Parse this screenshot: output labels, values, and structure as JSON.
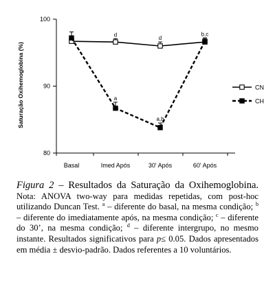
{
  "chart_data": {
    "type": "line",
    "categories": [
      "Basal",
      "Imed Após",
      "30' Após",
      "60' Após"
    ],
    "ylabel": "Saturação Oxihemoglobina (%)",
    "ylim": [
      80,
      100
    ],
    "yticks": [
      "80",
      "90",
      "100"
    ],
    "legend_position": "right",
    "grid": false,
    "series": [
      {
        "name": "CN",
        "marker": "open-square",
        "line": "solid",
        "values": [
          96.7,
          96.6,
          96.0,
          96.6
        ],
        "errors": [
          0.6,
          0.5,
          0.6,
          0.6
        ],
        "annotations": [
          "",
          "d",
          "d",
          "b,c"
        ]
      },
      {
        "name": "CH",
        "marker": "filled-square",
        "line": "dashed",
        "values": [
          97.2,
          86.7,
          83.8,
          96.7
        ],
        "errors": [
          0.9,
          0.9,
          0.7,
          0.5
        ],
        "annotations": [
          "",
          "a",
          "a,b",
          ""
        ]
      }
    ]
  },
  "caption": {
    "figure_label": "Figura 2",
    "dash": " – ",
    "title": "Resultados da Saturação da Oxihemoglobina.",
    "p1": " Nota: ANOVA two-way para medidas repetidas, com post-hoc utilizando Duncan Test. ",
    "sup_a": "a",
    "t_a": " – diferente do basal, na mesma condição; ",
    "sup_b": "b",
    "t_b": " – diferente do imediatamente após, na mesma condição; ",
    "sup_c": "c",
    "t_c": " – diferente do 30’, na mesma condição; ",
    "sup_d": "d",
    "t_d": " – diferente intergrupo, no mesmo instante. Resultados significativos para ",
    "p_symbol": "p",
    "t_end": "≤ 0.05. Dados apresentados em média ± desvio-padrão. Dados referentes a 10 voluntários."
  }
}
